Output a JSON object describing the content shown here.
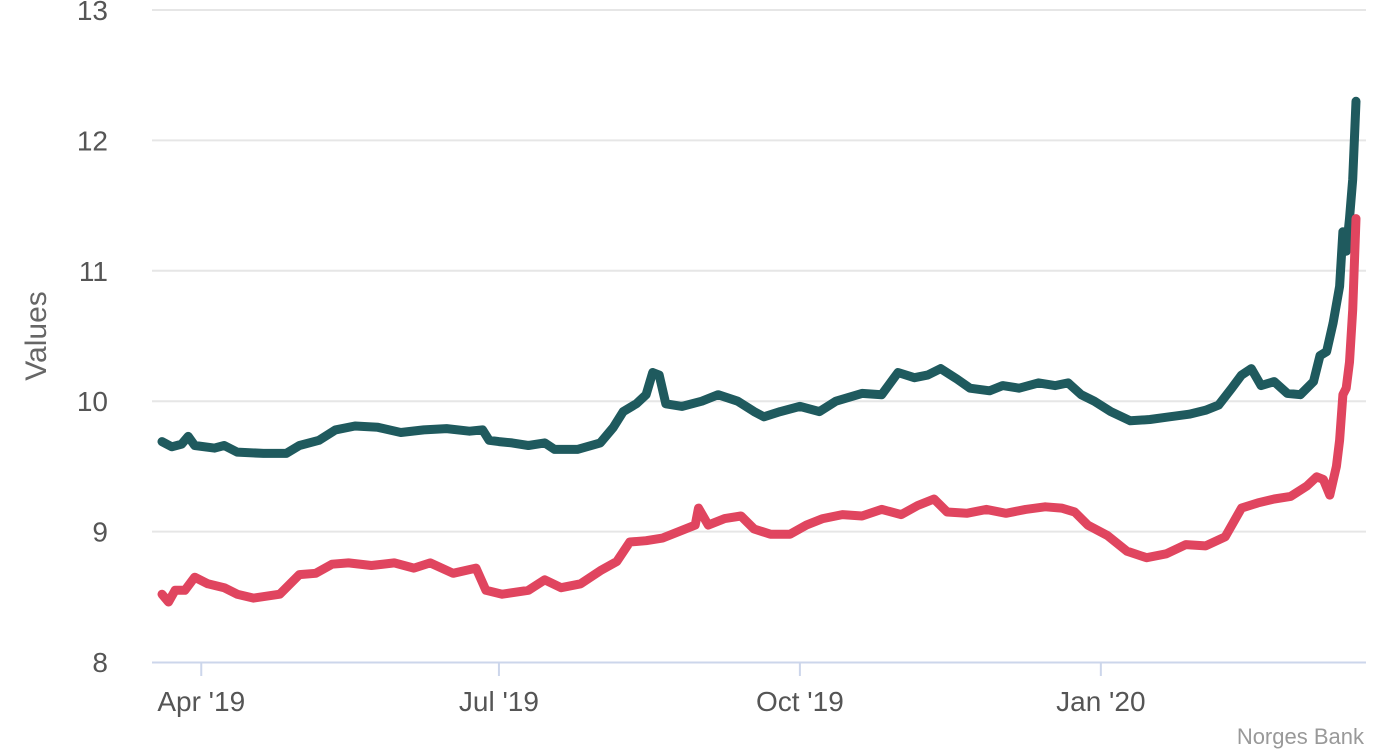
{
  "chart_data": {
    "type": "line",
    "ylabel": "Values",
    "ylim": [
      8,
      13
    ],
    "yticks": [
      "8",
      "9",
      "10",
      "11",
      "12",
      "13"
    ],
    "xlim": [
      "2019-03-20",
      "2020-03-19"
    ],
    "xticks": [
      {
        "label": "Apr '19",
        "date": "2019-04-01"
      },
      {
        "label": "Jul '19",
        "date": "2019-07-01"
      },
      {
        "label": "Oct '19",
        "date": "2019-10-01"
      },
      {
        "label": "Jan '20",
        "date": "2020-01-01"
      }
    ],
    "grid": true,
    "credit": "Norges Bank",
    "series": [
      {
        "color": "#1f5a5e",
        "points": [
          [
            "2019-03-20",
            9.69
          ],
          [
            "2019-03-23",
            9.65
          ],
          [
            "2019-03-26",
            9.67
          ],
          [
            "2019-03-28",
            9.73
          ],
          [
            "2019-03-30",
            9.66
          ],
          [
            "2019-04-05",
            9.64
          ],
          [
            "2019-04-08",
            9.66
          ],
          [
            "2019-04-12",
            9.61
          ],
          [
            "2019-04-20",
            9.6
          ],
          [
            "2019-04-27",
            9.6
          ],
          [
            "2019-05-01",
            9.66
          ],
          [
            "2019-05-07",
            9.7
          ],
          [
            "2019-05-12",
            9.78
          ],
          [
            "2019-05-18",
            9.81
          ],
          [
            "2019-05-25",
            9.8
          ],
          [
            "2019-06-01",
            9.76
          ],
          [
            "2019-06-08",
            9.78
          ],
          [
            "2019-06-15",
            9.79
          ],
          [
            "2019-06-22",
            9.77
          ],
          [
            "2019-06-26",
            9.78
          ],
          [
            "2019-06-28",
            9.7
          ],
          [
            "2019-07-01",
            9.69
          ],
          [
            "2019-07-05",
            9.68
          ],
          [
            "2019-07-10",
            9.66
          ],
          [
            "2019-07-15",
            9.68
          ],
          [
            "2019-07-18",
            9.63
          ],
          [
            "2019-07-25",
            9.63
          ],
          [
            "2019-08-01",
            9.68
          ],
          [
            "2019-08-05",
            9.8
          ],
          [
            "2019-08-08",
            9.92
          ],
          [
            "2019-08-12",
            9.98
          ],
          [
            "2019-08-15",
            10.05
          ],
          [
            "2019-08-17",
            10.22
          ],
          [
            "2019-08-19",
            10.2
          ],
          [
            "2019-08-21",
            9.98
          ],
          [
            "2019-08-26",
            9.96
          ],
          [
            "2019-09-01",
            10.0
          ],
          [
            "2019-09-06",
            10.05
          ],
          [
            "2019-09-12",
            10.0
          ],
          [
            "2019-09-17",
            9.92
          ],
          [
            "2019-09-20",
            9.88
          ],
          [
            "2019-09-25",
            9.92
          ],
          [
            "2019-10-01",
            9.96
          ],
          [
            "2019-10-07",
            9.92
          ],
          [
            "2019-10-12",
            10.0
          ],
          [
            "2019-10-20",
            10.06
          ],
          [
            "2019-10-26",
            10.05
          ],
          [
            "2019-10-31",
            10.22
          ],
          [
            "2019-11-05",
            10.18
          ],
          [
            "2019-11-09",
            10.2
          ],
          [
            "2019-11-13",
            10.25
          ],
          [
            "2019-11-18",
            10.17
          ],
          [
            "2019-11-22",
            10.1
          ],
          [
            "2019-11-28",
            10.08
          ],
          [
            "2019-12-02",
            10.12
          ],
          [
            "2019-12-07",
            10.1
          ],
          [
            "2019-12-13",
            10.14
          ],
          [
            "2019-12-18",
            10.12
          ],
          [
            "2019-12-22",
            10.14
          ],
          [
            "2019-12-26",
            10.05
          ],
          [
            "2019-12-30",
            10.0
          ],
          [
            "2020-01-04",
            9.92
          ],
          [
            "2020-01-10",
            9.85
          ],
          [
            "2020-01-16",
            9.86
          ],
          [
            "2020-01-22",
            9.88
          ],
          [
            "2020-01-28",
            9.9
          ],
          [
            "2020-02-02",
            9.93
          ],
          [
            "2020-02-06",
            9.97
          ],
          [
            "2020-02-10",
            10.1
          ],
          [
            "2020-02-13",
            10.2
          ],
          [
            "2020-02-16",
            10.25
          ],
          [
            "2020-02-19",
            10.12
          ],
          [
            "2020-02-23",
            10.15
          ],
          [
            "2020-02-27",
            10.06
          ],
          [
            "2020-03-02",
            10.05
          ],
          [
            "2020-03-06",
            10.15
          ],
          [
            "2020-03-08",
            10.35
          ],
          [
            "2020-03-10",
            10.38
          ],
          [
            "2020-03-12",
            10.6
          ],
          [
            "2020-03-14",
            10.88
          ],
          [
            "2020-03-15",
            11.3
          ],
          [
            "2020-03-16",
            11.15
          ],
          [
            "2020-03-17",
            11.4
          ],
          [
            "2020-03-18",
            11.7
          ],
          [
            "2020-03-19",
            12.3
          ]
        ]
      },
      {
        "color": "#e0455f",
        "points": [
          [
            "2019-03-20",
            8.52
          ],
          [
            "2019-03-22",
            8.46
          ],
          [
            "2019-03-24",
            8.55
          ],
          [
            "2019-03-27",
            8.55
          ],
          [
            "2019-03-30",
            8.65
          ],
          [
            "2019-04-03",
            8.6
          ],
          [
            "2019-04-08",
            8.57
          ],
          [
            "2019-04-12",
            8.52
          ],
          [
            "2019-04-17",
            8.49
          ],
          [
            "2019-04-25",
            8.52
          ],
          [
            "2019-05-01",
            8.67
          ],
          [
            "2019-05-06",
            8.68
          ],
          [
            "2019-05-11",
            8.75
          ],
          [
            "2019-05-16",
            8.76
          ],
          [
            "2019-05-23",
            8.74
          ],
          [
            "2019-05-30",
            8.76
          ],
          [
            "2019-06-05",
            8.72
          ],
          [
            "2019-06-10",
            8.76
          ],
          [
            "2019-06-17",
            8.68
          ],
          [
            "2019-06-24",
            8.72
          ],
          [
            "2019-06-27",
            8.55
          ],
          [
            "2019-07-02",
            8.52
          ],
          [
            "2019-07-10",
            8.55
          ],
          [
            "2019-07-15",
            8.63
          ],
          [
            "2019-07-20",
            8.57
          ],
          [
            "2019-07-26",
            8.6
          ],
          [
            "2019-08-01",
            8.7
          ],
          [
            "2019-08-06",
            8.77
          ],
          [
            "2019-08-10",
            8.92
          ],
          [
            "2019-08-15",
            8.93
          ],
          [
            "2019-08-20",
            8.95
          ],
          [
            "2019-08-25",
            9.0
          ],
          [
            "2019-08-30",
            9.05
          ],
          [
            "2019-08-31",
            9.18
          ],
          [
            "2019-09-03",
            9.05
          ],
          [
            "2019-09-08",
            9.1
          ],
          [
            "2019-09-13",
            9.12
          ],
          [
            "2019-09-17",
            9.02
          ],
          [
            "2019-09-22",
            8.98
          ],
          [
            "2019-09-28",
            8.98
          ],
          [
            "2019-10-03",
            9.05
          ],
          [
            "2019-10-08",
            9.1
          ],
          [
            "2019-10-14",
            9.13
          ],
          [
            "2019-10-20",
            9.12
          ],
          [
            "2019-10-26",
            9.17
          ],
          [
            "2019-11-01",
            9.13
          ],
          [
            "2019-11-06",
            9.2
          ],
          [
            "2019-11-11",
            9.25
          ],
          [
            "2019-11-15",
            9.15
          ],
          [
            "2019-11-21",
            9.14
          ],
          [
            "2019-11-27",
            9.17
          ],
          [
            "2019-12-03",
            9.14
          ],
          [
            "2019-12-09",
            9.17
          ],
          [
            "2019-12-15",
            9.19
          ],
          [
            "2019-12-20",
            9.18
          ],
          [
            "2019-12-24",
            9.15
          ],
          [
            "2019-12-28",
            9.05
          ],
          [
            "2020-01-03",
            8.97
          ],
          [
            "2020-01-09",
            8.85
          ],
          [
            "2020-01-15",
            8.8
          ],
          [
            "2020-01-21",
            8.83
          ],
          [
            "2020-01-27",
            8.9
          ],
          [
            "2020-02-02",
            8.89
          ],
          [
            "2020-02-08",
            8.96
          ],
          [
            "2020-02-13",
            9.18
          ],
          [
            "2020-02-18",
            9.22
          ],
          [
            "2020-02-23",
            9.25
          ],
          [
            "2020-02-28",
            9.27
          ],
          [
            "2020-03-04",
            9.35
          ],
          [
            "2020-03-07",
            9.42
          ],
          [
            "2020-03-09",
            9.4
          ],
          [
            "2020-03-11",
            9.28
          ],
          [
            "2020-03-13",
            9.5
          ],
          [
            "2020-03-14",
            9.7
          ],
          [
            "2020-03-15",
            10.05
          ],
          [
            "2020-03-16",
            10.1
          ],
          [
            "2020-03-17",
            10.3
          ],
          [
            "2020-03-18",
            10.7
          ],
          [
            "2020-03-19",
            11.4
          ]
        ]
      }
    ]
  }
}
